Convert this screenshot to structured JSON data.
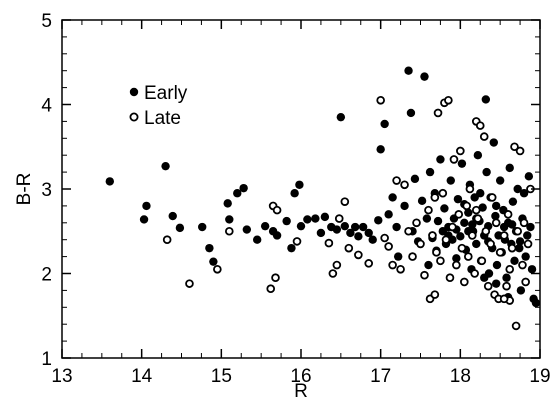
{
  "chart_data": {
    "type": "scatter",
    "title": "",
    "xlabel": "R",
    "ylabel": "B-R",
    "xlim": [
      13,
      19
    ],
    "ylim": [
      1,
      5
    ],
    "x_ticks": [
      "13",
      "14",
      "15",
      "16",
      "17",
      "18",
      "19"
    ],
    "y_ticks": [
      "1",
      "2",
      "3",
      "4",
      "5"
    ],
    "grid": false,
    "legend_position": "top-left",
    "series": [
      {
        "name": "Early",
        "marker": "filled-circle",
        "color": "#000000",
        "points": [
          [
            13.6,
            3.09
          ],
          [
            14.03,
            2.64
          ],
          [
            14.06,
            2.8
          ],
          [
            14.3,
            3.27
          ],
          [
            14.39,
            2.68
          ],
          [
            14.48,
            2.54
          ],
          [
            14.76,
            2.55
          ],
          [
            14.85,
            2.3
          ],
          [
            14.9,
            2.14
          ],
          [
            15.08,
            2.83
          ],
          [
            15.1,
            2.64
          ],
          [
            15.2,
            2.95
          ],
          [
            15.28,
            3.01
          ],
          [
            15.32,
            2.52
          ],
          [
            15.45,
            2.4
          ],
          [
            15.55,
            2.56
          ],
          [
            15.65,
            2.5
          ],
          [
            15.7,
            2.45
          ],
          [
            15.82,
            2.62
          ],
          [
            15.88,
            2.3
          ],
          [
            15.92,
            2.95
          ],
          [
            15.98,
            3.05
          ],
          [
            16.0,
            2.56
          ],
          [
            16.08,
            2.64
          ],
          [
            16.18,
            2.65
          ],
          [
            16.25,
            2.48
          ],
          [
            16.3,
            2.67
          ],
          [
            16.38,
            2.55
          ],
          [
            16.45,
            2.52
          ],
          [
            16.5,
            3.85
          ],
          [
            16.55,
            2.56
          ],
          [
            16.62,
            2.48
          ],
          [
            16.68,
            2.55
          ],
          [
            16.72,
            2.44
          ],
          [
            16.78,
            2.55
          ],
          [
            16.85,
            2.48
          ],
          [
            16.9,
            2.4
          ],
          [
            16.97,
            2.63
          ],
          [
            17.0,
            3.47
          ],
          [
            17.05,
            3.77
          ],
          [
            17.1,
            2.7
          ],
          [
            17.15,
            2.9
          ],
          [
            17.2,
            2.55
          ],
          [
            17.22,
            2.2
          ],
          [
            17.3,
            2.8
          ],
          [
            17.35,
            4.4
          ],
          [
            17.38,
            3.9
          ],
          [
            17.4,
            2.5
          ],
          [
            17.43,
            3.12
          ],
          [
            17.47,
            2.38
          ],
          [
            17.52,
            2.86
          ],
          [
            17.55,
            4.33
          ],
          [
            17.58,
            2.65
          ],
          [
            17.6,
            2.1
          ],
          [
            17.62,
            3.2
          ],
          [
            17.65,
            2.42
          ],
          [
            17.68,
            2.95
          ],
          [
            17.7,
            2.27
          ],
          [
            17.72,
            2.62
          ],
          [
            17.75,
            3.35
          ],
          [
            17.78,
            2.5
          ],
          [
            17.8,
            2.77
          ],
          [
            17.82,
            2.35
          ],
          [
            17.85,
            2.55
          ],
          [
            17.88,
            3.1
          ],
          [
            17.9,
            2.4
          ],
          [
            17.92,
            2.65
          ],
          [
            17.95,
            2.18
          ],
          [
            17.97,
            2.88
          ],
          [
            18.0,
            2.44
          ],
          [
            18.02,
            3.3
          ],
          [
            18.05,
            2.6
          ],
          [
            18.07,
            2.28
          ],
          [
            18.1,
            2.72
          ],
          [
            18.12,
            3.05
          ],
          [
            18.14,
            2.05
          ],
          [
            18.16,
            2.5
          ],
          [
            18.18,
            2.9
          ],
          [
            18.2,
            2.35
          ],
          [
            18.22,
            3.4
          ],
          [
            18.24,
            2.62
          ],
          [
            18.26,
            2.15
          ],
          [
            18.28,
            2.78
          ],
          [
            18.3,
            2.45
          ],
          [
            18.32,
            4.06
          ],
          [
            18.33,
            3.2
          ],
          [
            18.35,
            2.56
          ],
          [
            18.36,
            2.0
          ],
          [
            18.38,
            2.9
          ],
          [
            18.4,
            2.3
          ],
          [
            18.42,
            3.55
          ],
          [
            18.44,
            2.68
          ],
          [
            18.46,
            2.1
          ],
          [
            18.48,
            2.45
          ],
          [
            18.5,
            3.1
          ],
          [
            18.52,
            2.25
          ],
          [
            18.54,
            2.75
          ],
          [
            18.56,
            2.4
          ],
          [
            18.58,
            1.95
          ],
          [
            18.6,
            2.6
          ],
          [
            18.62,
            3.25
          ],
          [
            18.64,
            2.35
          ],
          [
            18.66,
            2.85
          ],
          [
            18.68,
            2.15
          ],
          [
            18.7,
            2.5
          ],
          [
            18.72,
            3.0
          ],
          [
            18.74,
            2.3
          ],
          [
            18.76,
            1.8
          ],
          [
            18.78,
            2.65
          ],
          [
            18.8,
            2.95
          ],
          [
            18.82,
            2.2
          ],
          [
            18.84,
            2.45
          ],
          [
            18.86,
            3.15
          ],
          [
            18.88,
            2.55
          ],
          [
            18.9,
            2.05
          ],
          [
            18.92,
            1.7
          ],
          [
            18.95,
            1.65
          ],
          [
            18.05,
            2.82
          ],
          [
            18.15,
            2.58
          ],
          [
            18.25,
            2.95
          ],
          [
            18.35,
            2.38
          ],
          [
            18.45,
            2.8
          ],
          [
            18.55,
            2.55
          ],
          [
            18.65,
            2.58
          ],
          [
            18.75,
            2.38
          ],
          [
            17.95,
            2.52
          ],
          [
            17.85,
            2.45
          ],
          [
            18.45,
            1.88
          ],
          [
            18.6,
            1.72
          ],
          [
            18.3,
            1.95
          ],
          [
            18.1,
            2.5
          ],
          [
            18.2,
            2.65
          ]
        ]
      },
      {
        "name": "Late",
        "marker": "open-circle",
        "color": "#000000",
        "points": [
          [
            14.32,
            2.4
          ],
          [
            14.6,
            1.88
          ],
          [
            14.95,
            2.05
          ],
          [
            15.1,
            2.5
          ],
          [
            15.62,
            1.82
          ],
          [
            15.65,
            2.8
          ],
          [
            15.68,
            1.95
          ],
          [
            15.7,
            2.75
          ],
          [
            15.95,
            2.38
          ],
          [
            16.35,
            2.36
          ],
          [
            16.4,
            2.0
          ],
          [
            16.45,
            2.1
          ],
          [
            16.48,
            2.65
          ],
          [
            16.55,
            2.85
          ],
          [
            16.6,
            2.3
          ],
          [
            16.72,
            2.22
          ],
          [
            16.85,
            2.12
          ],
          [
            17.0,
            4.05
          ],
          [
            17.05,
            2.42
          ],
          [
            17.1,
            2.32
          ],
          [
            17.15,
            2.1
          ],
          [
            17.2,
            3.1
          ],
          [
            17.25,
            2.05
          ],
          [
            17.3,
            3.05
          ],
          [
            17.35,
            2.5
          ],
          [
            17.4,
            2.2
          ],
          [
            17.45,
            2.6
          ],
          [
            17.5,
            2.35
          ],
          [
            17.55,
            1.98
          ],
          [
            17.6,
            2.75
          ],
          [
            17.62,
            1.7
          ],
          [
            17.65,
            2.45
          ],
          [
            17.68,
            1.75
          ],
          [
            17.7,
            2.25
          ],
          [
            17.72,
            3.9
          ],
          [
            17.75,
            2.15
          ],
          [
            17.78,
            2.95
          ],
          [
            17.8,
            4.02
          ],
          [
            17.82,
            2.4
          ],
          [
            17.85,
            4.05
          ],
          [
            17.87,
            1.95
          ],
          [
            17.9,
            2.55
          ],
          [
            17.92,
            3.35
          ],
          [
            17.95,
            2.1
          ],
          [
            17.98,
            2.7
          ],
          [
            18.0,
            3.45
          ],
          [
            18.02,
            2.3
          ],
          [
            18.05,
            1.9
          ],
          [
            18.08,
            2.8
          ],
          [
            18.1,
            2.2
          ],
          [
            18.12,
            3.0
          ],
          [
            18.15,
            2.45
          ],
          [
            18.18,
            2.0
          ],
          [
            18.2,
            3.8
          ],
          [
            18.22,
            2.65
          ],
          [
            18.25,
            3.75
          ],
          [
            18.27,
            2.15
          ],
          [
            18.3,
            3.62
          ],
          [
            18.32,
            2.5
          ],
          [
            18.35,
            1.85
          ],
          [
            18.38,
            2.35
          ],
          [
            18.4,
            2.9
          ],
          [
            18.43,
            1.75
          ],
          [
            18.45,
            2.6
          ],
          [
            18.48,
            1.7
          ],
          [
            18.5,
            2.25
          ],
          [
            18.55,
            2.45
          ],
          [
            18.58,
            1.85
          ],
          [
            18.6,
            2.7
          ],
          [
            18.62,
            2.05
          ],
          [
            18.65,
            2.3
          ],
          [
            18.68,
            3.5
          ],
          [
            18.7,
            1.38
          ],
          [
            18.72,
            2.5
          ],
          [
            18.75,
            3.45
          ],
          [
            18.78,
            2.1
          ],
          [
            18.8,
            2.6
          ],
          [
            18.82,
            1.9
          ],
          [
            18.85,
            2.35
          ],
          [
            18.88,
            3.0
          ],
          [
            18.62,
            1.68
          ],
          [
            18.55,
            1.7
          ],
          [
            18.2,
            2.75
          ],
          [
            17.68,
            2.9
          ]
        ]
      }
    ]
  }
}
